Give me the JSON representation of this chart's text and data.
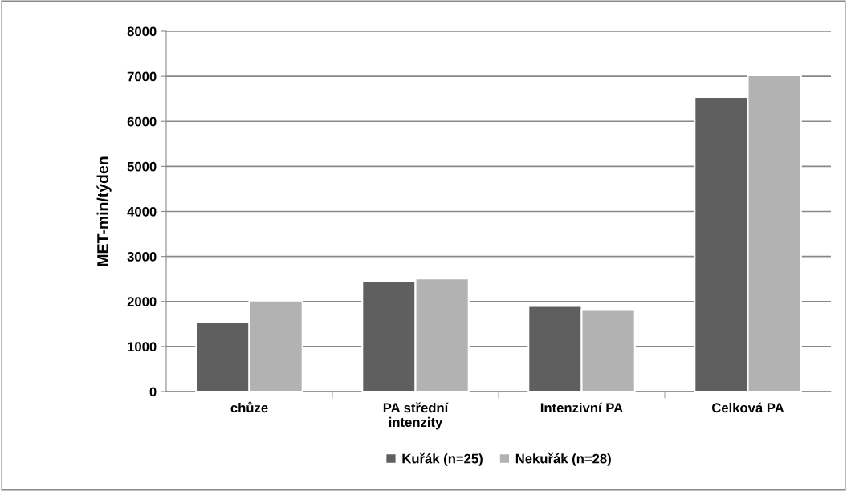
{
  "chart_data": {
    "type": "bar",
    "ylabel": "MET-min/týden",
    "categories": [
      "chůze",
      "PA střední\nintenzity",
      "Intenzivní PA",
      "Celková PA"
    ],
    "series": [
      {
        "name": "Kuřák (n=25)",
        "color": "#5f5f5f",
        "values": [
          1550,
          2450,
          1900,
          6540
        ]
      },
      {
        "name": "Nekuřák (n=28)",
        "color": "#b2b2b2",
        "values": [
          2020,
          2510,
          1810,
          7020
        ]
      }
    ],
    "ylim": [
      0,
      8000
    ],
    "yticks": [
      0,
      1000,
      2000,
      3000,
      4000,
      5000,
      6000,
      7000,
      8000
    ],
    "grid": "y",
    "legend": "bottom"
  }
}
